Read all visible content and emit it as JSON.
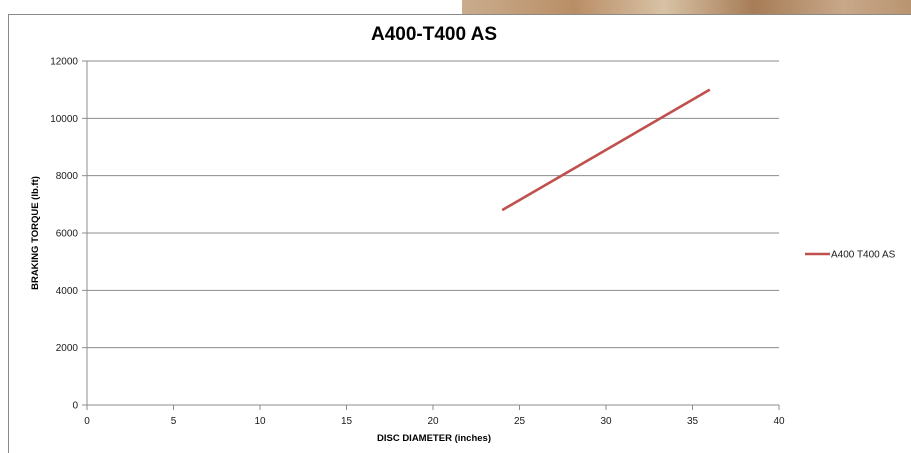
{
  "chart_data": {
    "type": "line",
    "title": "A400-T400 AS",
    "xlabel": "DISC DIAMETER (inches)",
    "ylabel": "BRAKING TORQUE (lb.ft)",
    "xlim": [
      0,
      40
    ],
    "ylim": [
      0,
      12000
    ],
    "x_ticks": [
      0,
      5,
      10,
      15,
      20,
      25,
      30,
      35,
      40
    ],
    "y_ticks": [
      0,
      2000,
      4000,
      6000,
      8000,
      10000,
      12000
    ],
    "grid": "horizontal",
    "legend_position": "right",
    "series": [
      {
        "name": "A400 T400 AS",
        "color": "#c0504d",
        "x": [
          24,
          36
        ],
        "y": [
          6800,
          11000
        ]
      }
    ]
  }
}
